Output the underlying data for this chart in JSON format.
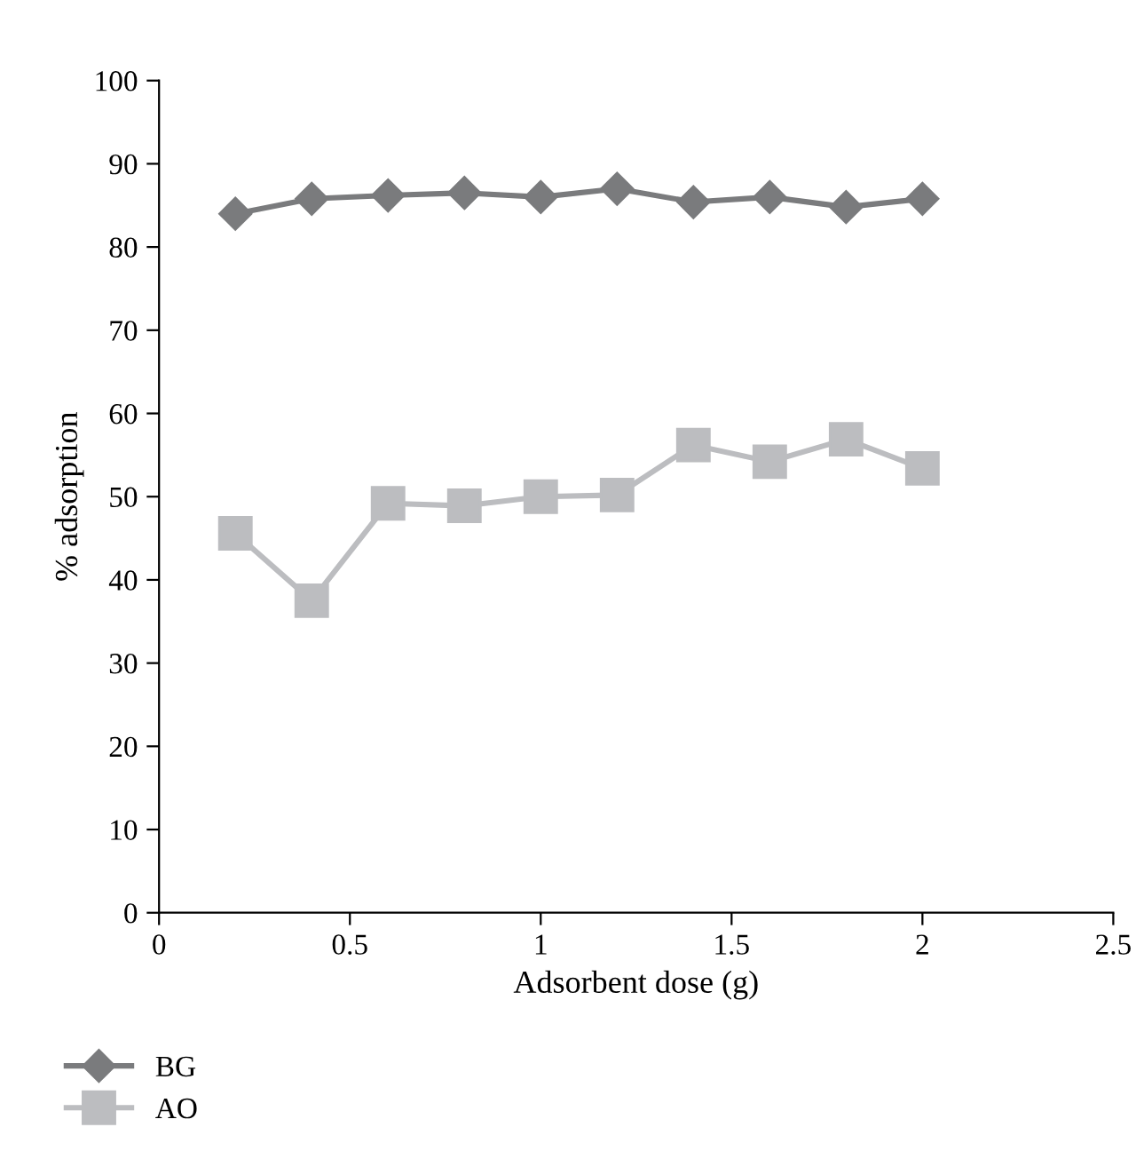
{
  "chart_data": {
    "type": "line",
    "xlabel": "Adsorbent dose (g)",
    "ylabel": "% adsorption",
    "x": [
      0.2,
      0.4,
      0.6,
      0.8,
      1.0,
      1.2,
      1.4,
      1.6,
      1.8,
      2.0
    ],
    "series": [
      {
        "name": "BG",
        "color": "#7a7b7d",
        "marker": "diamond",
        "values": [
          84.0,
          85.8,
          86.2,
          86.5,
          86.0,
          87.0,
          85.4,
          86.0,
          84.8,
          85.8
        ]
      },
      {
        "name": "AO",
        "color": "#bcbdc0",
        "marker": "square",
        "values": [
          45.6,
          37.5,
          49.2,
          48.9,
          50.0,
          50.2,
          56.2,
          54.2,
          56.9,
          53.4
        ]
      }
    ],
    "xlim": [
      0,
      2.5
    ],
    "xticks": [
      0,
      0.5,
      1,
      1.5,
      2,
      2.5
    ],
    "ylim": [
      0,
      100
    ],
    "yticks": [
      0,
      10,
      20,
      30,
      40,
      50,
      60,
      70,
      80,
      90,
      100
    ],
    "grid": false,
    "legend": "bottom left",
    "line_style": "solid"
  }
}
